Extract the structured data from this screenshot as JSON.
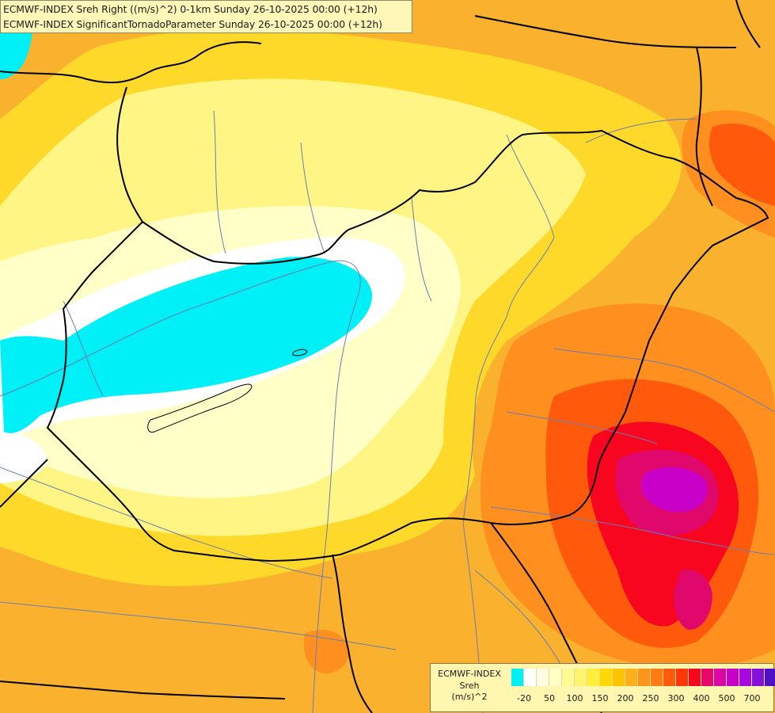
{
  "title_lines": [
    "ECMWF-INDEX Sreh Right ((m/s)^2) 0-1km Sunday 26-10-2025 00:00 (+12h)",
    "ECMWF-INDEX SignificantTornadoParameter Sunday 26-10-2025 00:00 (+12h)"
  ],
  "legend": {
    "caption_lines": [
      "ECMWF-INDEX",
      "Sreh",
      "(m/s)^2"
    ],
    "swatches": [
      "#00f0f8",
      "#ffffff",
      "#fffce4",
      "#ffffc4",
      "#fffa94",
      "#fff470",
      "#ffee3a",
      "#ffd800",
      "#ffc200",
      "#ffae1c",
      "#ff9418",
      "#ff7c12",
      "#ff5a0c",
      "#ff360a",
      "#f80620",
      "#e8086a",
      "#dc06a4",
      "#c800c8",
      "#a808e0",
      "#8410dc",
      "#5010c4",
      "#1c0c98"
    ],
    "tick_labels": [
      "-20",
      "50",
      "100",
      "150",
      "200",
      "250",
      "300",
      "400",
      "500",
      "700"
    ]
  },
  "map_colors": {
    "ocean_orange": "#f9b12e",
    "yellow": "#ffd92a",
    "light_yellow": "#fff585",
    "pale": "#ffffc8",
    "white": "#ffffff",
    "cyan": "#00f0f8",
    "orange": "#ff8f1e",
    "red_orange": "#ff5a0c",
    "red": "#f80620",
    "magenta": "#e0086a",
    "purple": "#c800c8",
    "border": "#000000",
    "river": "#6a7eb0"
  }
}
